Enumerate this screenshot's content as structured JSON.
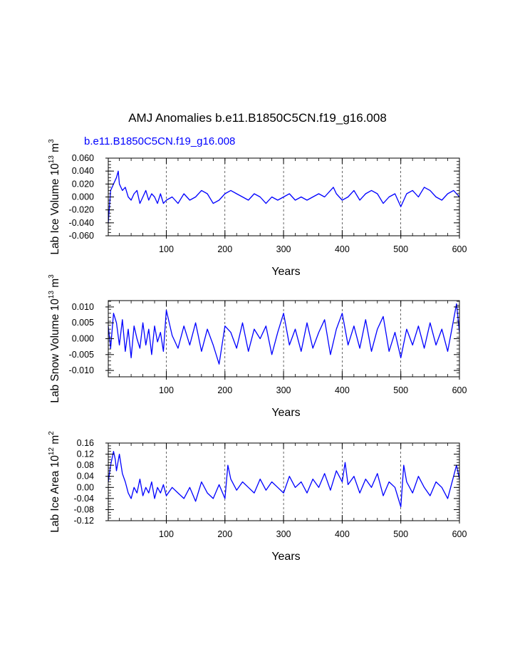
{
  "title": "AMJ Anomalies b.e11.B1850C5CN.f19_g16.008",
  "subtitle": "b.e11.B1850C5CN.f19_g16.008",
  "line_color": "#0000ff",
  "chart_data": [
    {
      "type": "line",
      "ylabel_main": "Lab Ice Volume 10",
      "ylabel_sup1": "13",
      "ylabel_mid": " m",
      "ylabel_sup2": "3",
      "xlabel": "Years",
      "xlim": [
        1,
        600
      ],
      "ylim": [
        -0.06,
        0.06
      ],
      "xticks": [
        100,
        200,
        300,
        400,
        500,
        600
      ],
      "xtick_labels": [
        "100",
        "200",
        "300",
        "400",
        "500",
        "600"
      ],
      "yticks": [
        -0.06,
        -0.04,
        -0.02,
        0.0,
        0.02,
        0.04,
        0.06
      ],
      "ytick_labels": [
        "-0.060",
        "-0.040",
        "-0.020",
        "0.000",
        "0.020",
        "0.040",
        "0.060"
      ],
      "grid_x": [
        100,
        200,
        300,
        400,
        500
      ],
      "series": [
        {
          "x": [
            1,
            5,
            10,
            15,
            18,
            20,
            25,
            30,
            35,
            40,
            45,
            50,
            55,
            60,
            65,
            70,
            75,
            80,
            85,
            90,
            95,
            100,
            110,
            120,
            130,
            140,
            150,
            160,
            170,
            180,
            190,
            200,
            210,
            220,
            230,
            240,
            250,
            260,
            270,
            280,
            290,
            300,
            310,
            320,
            330,
            340,
            350,
            360,
            370,
            380,
            385,
            390,
            400,
            410,
            420,
            430,
            440,
            450,
            460,
            470,
            480,
            490,
            500,
            510,
            520,
            530,
            540,
            550,
            560,
            570,
            580,
            590,
            600
          ],
          "values": [
            -0.04,
            0.01,
            0.02,
            0.03,
            0.04,
            0.02,
            0.01,
            0.015,
            0.0,
            -0.005,
            0.005,
            0.01,
            -0.01,
            0.0,
            0.01,
            -0.005,
            0.005,
            0.0,
            -0.01,
            0.005,
            -0.01,
            -0.005,
            0.0,
            -0.01,
            0.005,
            -0.005,
            0.0,
            0.01,
            0.005,
            -0.01,
            -0.005,
            0.005,
            0.01,
            0.005,
            0.0,
            -0.005,
            0.005,
            0.0,
            -0.01,
            0.0,
            -0.005,
            0.0,
            0.005,
            -0.005,
            0.0,
            -0.005,
            0.0,
            0.005,
            0.0,
            0.01,
            0.015,
            0.005,
            -0.005,
            0.0,
            0.01,
            -0.005,
            0.005,
            0.01,
            0.005,
            -0.01,
            0.0,
            0.005,
            -0.015,
            0.005,
            0.01,
            0.0,
            0.015,
            0.01,
            0.0,
            -0.005,
            0.005,
            0.01,
            0.0
          ]
        }
      ]
    },
    {
      "type": "line",
      "ylabel_main": "Lab Snow Volume 10",
      "ylabel_sup1": "13",
      "ylabel_mid": " m",
      "ylabel_sup2": "3",
      "xlabel": "Years",
      "xlim": [
        1,
        600
      ],
      "ylim": [
        -0.012,
        0.012
      ],
      "xticks": [
        100,
        200,
        300,
        400,
        500,
        600
      ],
      "xtick_labels": [
        "100",
        "200",
        "300",
        "400",
        "500",
        "600"
      ],
      "yticks": [
        -0.01,
        -0.005,
        0.0,
        0.005,
        0.01
      ],
      "ytick_labels": [
        "-0.010",
        "-0.005",
        "0.000",
        "0.005",
        "0.010"
      ],
      "grid_x": [
        100,
        200,
        300,
        400,
        500
      ],
      "series": [
        {
          "x": [
            1,
            5,
            10,
            15,
            20,
            25,
            30,
            35,
            40,
            45,
            50,
            55,
            60,
            65,
            70,
            75,
            80,
            85,
            90,
            95,
            100,
            110,
            120,
            130,
            140,
            150,
            160,
            170,
            180,
            190,
            200,
            210,
            220,
            230,
            240,
            250,
            260,
            270,
            280,
            290,
            300,
            310,
            320,
            330,
            340,
            350,
            360,
            370,
            380,
            390,
            400,
            410,
            420,
            430,
            440,
            450,
            460,
            470,
            480,
            490,
            500,
            510,
            520,
            530,
            540,
            550,
            560,
            570,
            580,
            590,
            595,
            600
          ],
          "values": [
            0.004,
            -0.003,
            0.008,
            0.005,
            -0.002,
            0.006,
            -0.004,
            0.003,
            -0.006,
            0.004,
            0.0,
            -0.003,
            0.005,
            -0.002,
            0.003,
            -0.005,
            0.004,
            -0.001,
            0.002,
            -0.004,
            0.009,
            0.001,
            -0.003,
            0.004,
            -0.002,
            0.005,
            -0.004,
            0.003,
            -0.002,
            -0.008,
            0.004,
            0.002,
            -0.003,
            0.005,
            -0.004,
            0.003,
            0.0,
            0.004,
            -0.005,
            0.002,
            0.008,
            -0.002,
            0.003,
            -0.004,
            0.005,
            -0.003,
            0.002,
            0.006,
            -0.005,
            0.003,
            0.008,
            -0.002,
            0.004,
            -0.003,
            0.006,
            -0.004,
            0.003,
            0.007,
            -0.004,
            0.002,
            -0.006,
            0.003,
            -0.002,
            0.004,
            -0.003,
            0.005,
            -0.002,
            0.003,
            -0.004,
            0.006,
            0.011,
            0.002
          ]
        }
      ]
    },
    {
      "type": "line",
      "ylabel_main": "Lab Ice Area 10",
      "ylabel_sup1": "12",
      "ylabel_mid": " m",
      "ylabel_sup2": "2",
      "xlabel": "Years",
      "xlim": [
        1,
        600
      ],
      "ylim": [
        -0.12,
        0.16
      ],
      "xticks": [
        100,
        200,
        300,
        400,
        500,
        600
      ],
      "xtick_labels": [
        "100",
        "200",
        "300",
        "400",
        "500",
        "600"
      ],
      "yticks": [
        -0.12,
        -0.08,
        -0.04,
        0.0,
        0.04,
        0.08,
        0.12,
        0.16
      ],
      "ytick_labels": [
        "-0.12",
        "-0.08",
        "-0.04",
        "0.00",
        "0.04",
        "0.08",
        "0.12",
        "0.16"
      ],
      "grid_x": [
        100,
        200,
        300,
        400,
        500
      ],
      "series": [
        {
          "x": [
            1,
            5,
            10,
            13,
            15,
            20,
            25,
            30,
            35,
            40,
            45,
            50,
            55,
            60,
            65,
            70,
            75,
            80,
            85,
            90,
            95,
            100,
            110,
            120,
            130,
            140,
            150,
            160,
            170,
            180,
            190,
            200,
            205,
            210,
            220,
            230,
            240,
            250,
            260,
            270,
            280,
            290,
            300,
            310,
            320,
            330,
            340,
            350,
            360,
            370,
            380,
            390,
            400,
            405,
            410,
            420,
            430,
            440,
            450,
            460,
            470,
            480,
            490,
            500,
            505,
            510,
            520,
            530,
            540,
            550,
            560,
            570,
            580,
            590,
            595,
            600
          ],
          "values": [
            0.02,
            0.08,
            0.13,
            0.1,
            0.06,
            0.12,
            0.05,
            0.02,
            -0.02,
            -0.04,
            0.0,
            -0.02,
            0.03,
            -0.03,
            0.0,
            -0.02,
            0.02,
            -0.04,
            0.0,
            -0.02,
            0.01,
            -0.03,
            0.0,
            -0.02,
            -0.04,
            0.0,
            -0.05,
            0.02,
            -0.02,
            -0.04,
            0.01,
            -0.04,
            0.08,
            0.03,
            -0.01,
            0.02,
            0.0,
            -0.02,
            0.03,
            -0.01,
            0.02,
            0.0,
            -0.02,
            0.04,
            0.0,
            0.02,
            -0.02,
            0.03,
            0.0,
            0.05,
            -0.01,
            0.06,
            0.02,
            0.09,
            0.01,
            0.04,
            -0.02,
            0.03,
            0.0,
            0.05,
            -0.03,
            0.02,
            0.0,
            -0.07,
            0.08,
            0.02,
            -0.02,
            0.04,
            0.0,
            -0.03,
            0.02,
            0.0,
            -0.04,
            0.04,
            0.08,
            0.03
          ]
        }
      ]
    }
  ]
}
